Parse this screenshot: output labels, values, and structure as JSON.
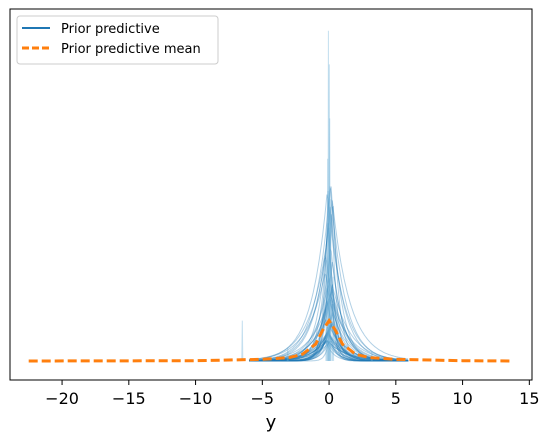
{
  "chart_data": {
    "type": "line",
    "xlabel": "y",
    "ylabel": "",
    "title": "",
    "xlim": [
      -23.9,
      15.2
    ],
    "xticks": [
      -20,
      -15,
      -10,
      -5,
      0,
      5,
      10,
      15
    ],
    "xtick_labels": [
      "−20",
      "−15",
      "−10",
      "−5",
      "0",
      "5",
      "10",
      "15"
    ],
    "yticks_visible": false,
    "grid": false,
    "legend": {
      "placement": "top-left",
      "entries": [
        {
          "label": "Prior predictive",
          "style": "solid",
          "color": "#1f77b4"
        },
        {
          "label": "Prior predictive mean",
          "style": "dashed",
          "color": "#ff7f0e"
        }
      ]
    },
    "series": [
      {
        "name": "Prior predictive mean",
        "color": "#ff7f0e",
        "x": [
          -22.5,
          -10,
          -5,
          -3,
          -2,
          -1,
          -0.5,
          0,
          0.5,
          1,
          2,
          3,
          5,
          10,
          13.7
        ],
        "y": [
          0.0,
          0.001,
          0.005,
          0.01,
          0.02,
          0.05,
          0.09,
          0.12,
          0.09,
          0.05,
          0.02,
          0.01,
          0.005,
          0.001,
          0.0
        ]
      }
    ],
    "prior_draws_note_visible": false,
    "y_max_visible": 1.0
  }
}
